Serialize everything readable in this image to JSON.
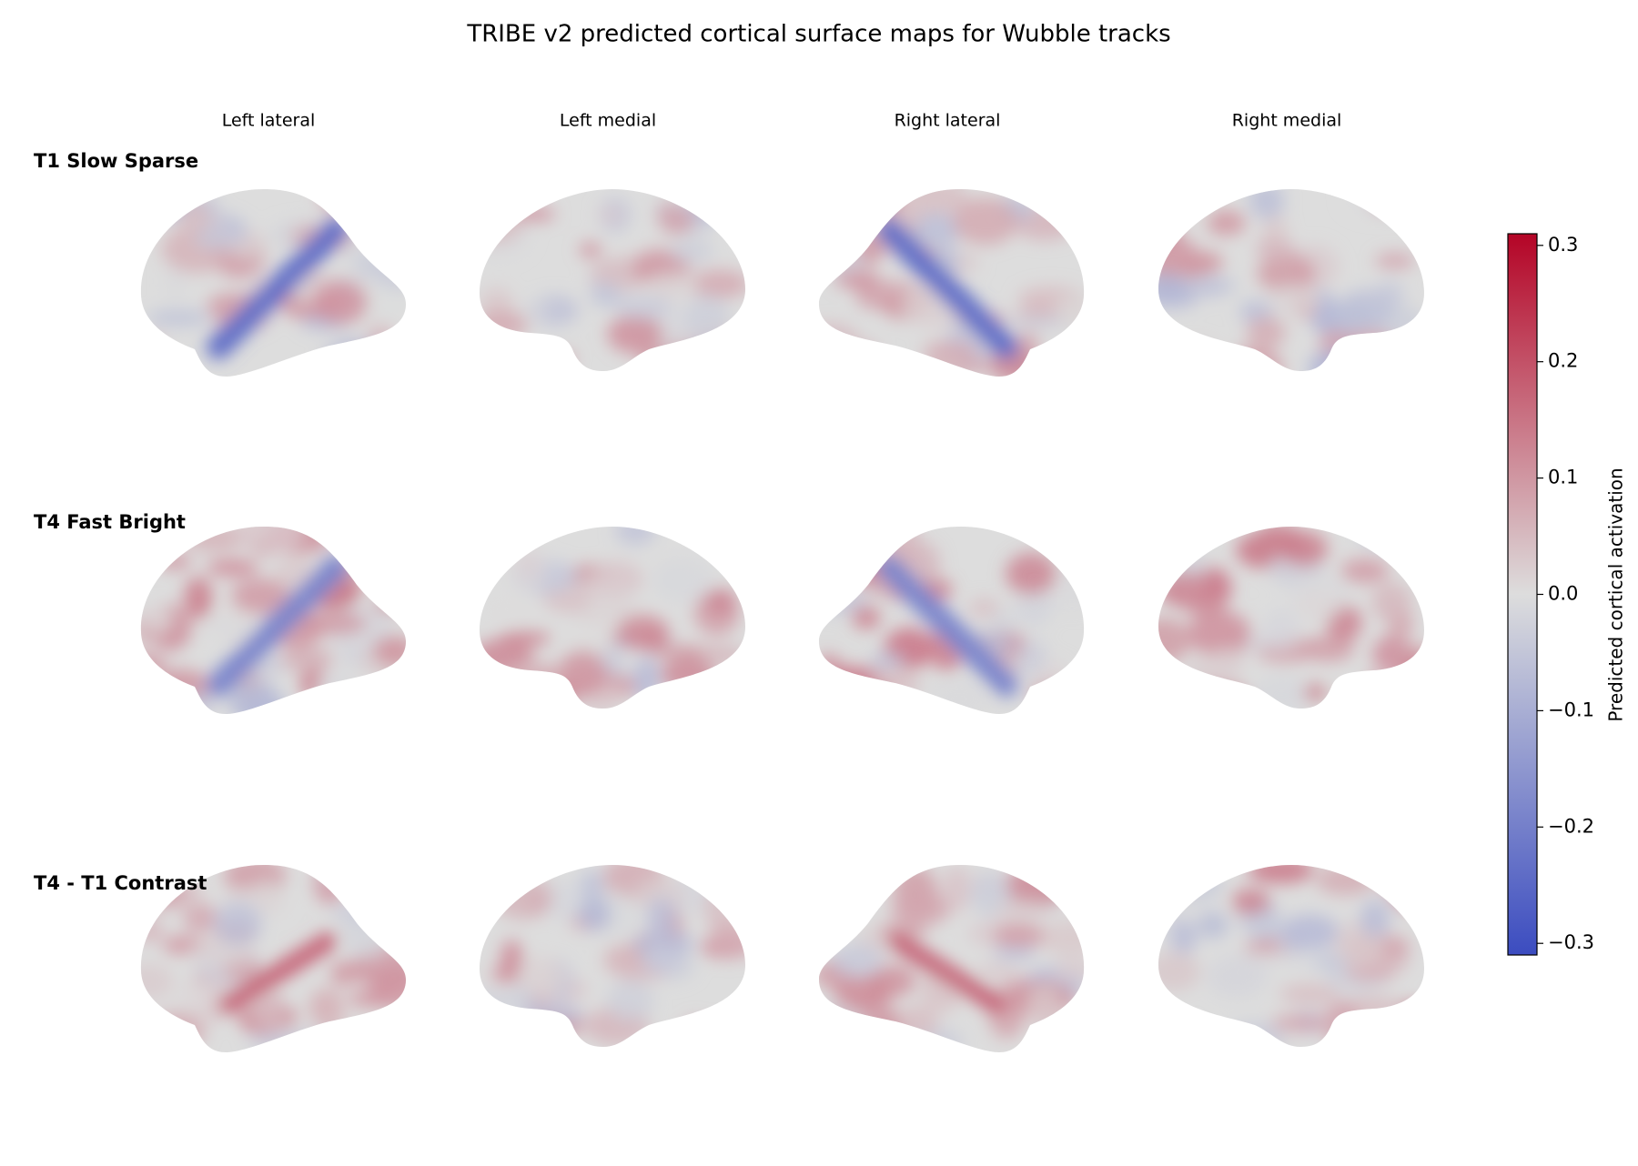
{
  "chart_data": {
    "type": "brain-surface-maps",
    "title": "TRIBE v2 predicted cortical surface maps for Wubble tracks",
    "columns": [
      "Left lateral",
      "Left medial",
      "Right lateral",
      "Right medial"
    ],
    "rows": [
      "T1 Slow Sparse",
      "T4 Fast Bright",
      "T4 - T1 Contrast"
    ],
    "colorbar": {
      "label": "Predicted cortical activation",
      "colors": [
        "#3b4cc0",
        "#dddddd",
        "#b40426"
      ],
      "ylim": [
        -0.31,
        0.31
      ],
      "yticks": [
        {
          "value": -0.3,
          "label": "−0.3"
        },
        {
          "value": -0.2,
          "label": "−0.2"
        },
        {
          "value": -0.1,
          "label": "−0.1"
        },
        {
          "value": 0,
          "label": "0.0"
        },
        0.1,
        0.2,
        0.3
      ]
    }
  }
}
